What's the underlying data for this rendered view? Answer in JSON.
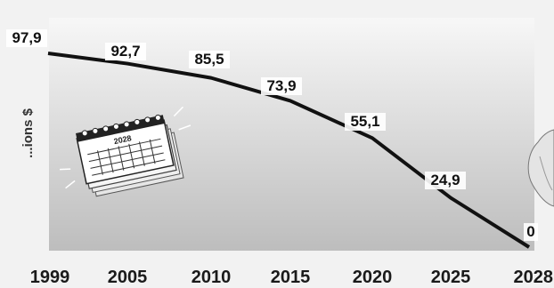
{
  "chart_data": {
    "type": "line",
    "title": "",
    "xlabel": "",
    "ylabel": "...ions $",
    "ylim": [
      0,
      100
    ],
    "categories": [
      "1999",
      "2005",
      "2010",
      "2015",
      "2020",
      "2025",
      "2028"
    ],
    "series": [
      {
        "values": [
          97.9,
          92.7,
          85.5,
          73.9,
          55.1,
          24.9,
          0
        ],
        "labels": [
          "97,9",
          "92,7",
          "85,5",
          "73,9",
          "55,1",
          "24,9",
          "0"
        ]
      }
    ],
    "annotations": [
      {
        "type": "calendar-illustration",
        "text": "2028"
      }
    ],
    "grid": false,
    "legend": "none",
    "colors": {
      "line": "#111111",
      "plot_top": "#f7f7f7",
      "plot_bottom": "#bdbdbd"
    }
  }
}
